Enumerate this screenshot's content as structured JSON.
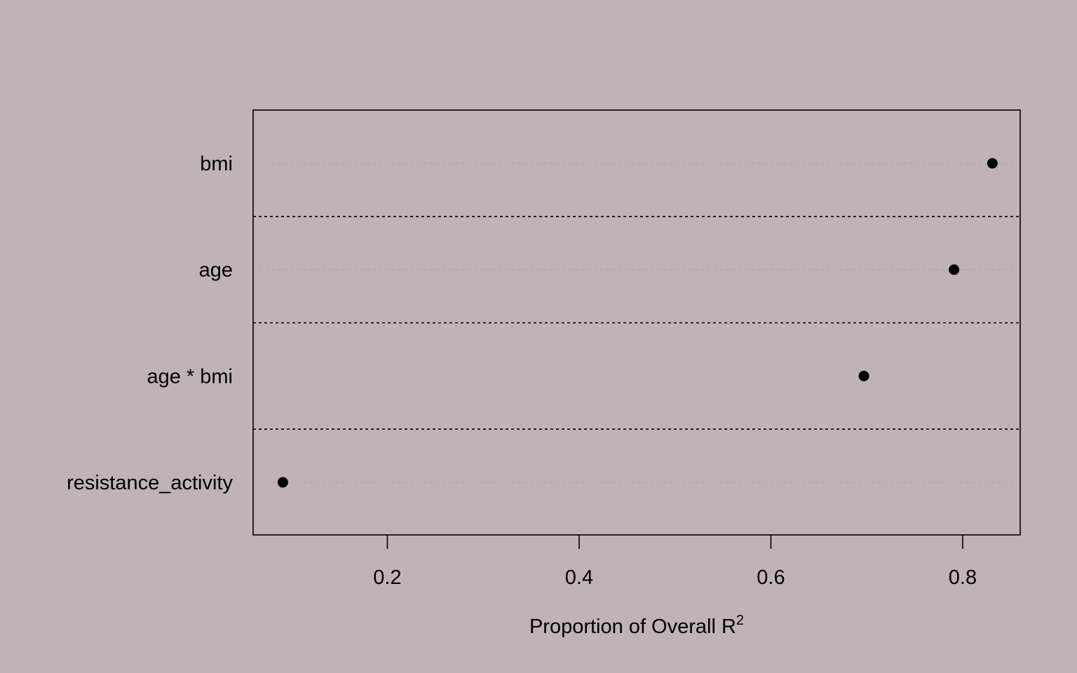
{
  "colors": {
    "background": "#c1b2b7",
    "foreground": "#000000",
    "guide_line": "#b3a5aa"
  },
  "chart_data": {
    "type": "scatter",
    "title": "",
    "subtitle": "",
    "xlabel": "Proportion of Overall R",
    "xlabel_superscript": "2",
    "ylabel": "",
    "xlim": [
      0.06,
      0.86
    ],
    "xticks": [
      0.2,
      0.4,
      0.6,
      0.8
    ],
    "xtick_labels": [
      "0.2",
      "0.4",
      "0.6",
      "0.8"
    ],
    "categories": [
      "bmi",
      "age",
      "age * bmi",
      "resistance_activity"
    ],
    "values": [
      0.831,
      0.791,
      0.697,
      0.091
    ],
    "grid": false,
    "legend": "none",
    "separators_between_rows": true
  }
}
